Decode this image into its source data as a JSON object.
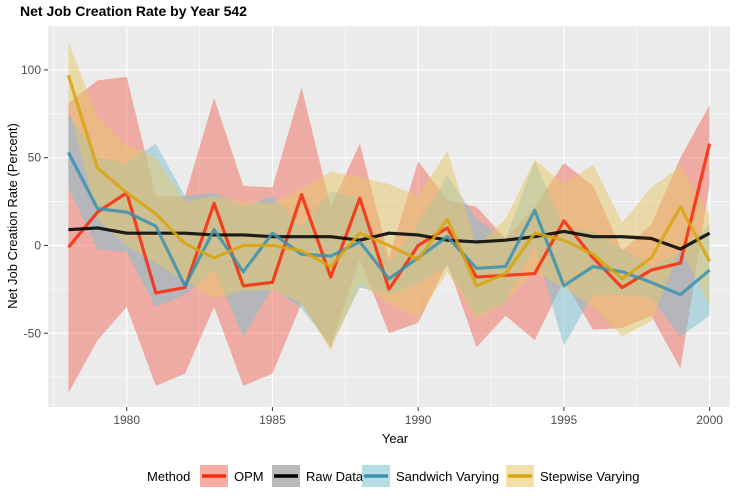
{
  "chart_data": {
    "type": "line",
    "title": "Net Job Creation Rate by Year 542",
    "xlabel": "Year",
    "ylabel": "Net Job Creation Rate (Percent)",
    "xlim": [
      1977.3,
      2000.7
    ],
    "ylim": [
      -92,
      125
    ],
    "x_ticks": [
      1980,
      1985,
      1990,
      1995,
      2000
    ],
    "y_ticks": [
      -50,
      0,
      50,
      100
    ],
    "x_tick_labels": [
      "1980",
      "1985",
      "1990",
      "1995",
      "2000"
    ],
    "y_tick_labels": [
      "-50",
      "0",
      "50",
      "100"
    ],
    "grid": true,
    "legend_position": "bottom",
    "legend_title": "Method",
    "x": [
      1978,
      1979,
      1980,
      1981,
      1982,
      1983,
      1984,
      1985,
      1986,
      1987,
      1988,
      1989,
      1990,
      1991,
      1992,
      1993,
      1994,
      1995,
      1996,
      1997,
      1998,
      1999,
      2000
    ],
    "series": [
      {
        "name": "OPM",
        "color": "#F8290A",
        "band_color": "#F26B5B",
        "values": [
          -1,
          19,
          30,
          -27,
          -24,
          24,
          -23,
          -21,
          29,
          -18,
          27,
          -25,
          0,
          10,
          -18,
          -17,
          -16,
          14,
          -7,
          -24,
          -14,
          -10,
          58
        ],
        "lower": [
          -84,
          -54,
          -35,
          -80,
          -73,
          -35,
          -80,
          -73,
          -33,
          -58,
          -8,
          -50,
          -44,
          -10,
          -58,
          -40,
          -54,
          -20,
          -48,
          -47,
          -40,
          -70,
          35
        ],
        "upper": [
          81,
          94,
          96,
          28,
          28,
          84,
          34,
          33,
          90,
          22,
          58,
          -7,
          48,
          26,
          22,
          4,
          22,
          47,
          34,
          -3,
          12,
          50,
          80
        ]
      },
      {
        "name": "Raw Data",
        "color": "#000000",
        "band_color": "#7F7F7F",
        "values": [
          9,
          10,
          7,
          7,
          7,
          6,
          6,
          5,
          5,
          5,
          3,
          7,
          6,
          3,
          2,
          3,
          5,
          8,
          5,
          5,
          4,
          -2,
          7
        ],
        "lower": [
          8,
          9,
          6,
          6,
          6,
          5,
          5,
          4,
          4,
          4,
          2,
          6,
          5,
          2,
          1,
          2,
          4,
          7,
          4,
          4,
          3,
          -3,
          6
        ],
        "upper": [
          10,
          11,
          8,
          8,
          8,
          7,
          7,
          6,
          6,
          6,
          4,
          8,
          7,
          4,
          3,
          4,
          6,
          9,
          6,
          6,
          5,
          -1,
          8
        ]
      },
      {
        "name": "Sandwich Varying",
        "color": "#3A92B0",
        "band_color": "#7CC1D1",
        "values": [
          53,
          21,
          19,
          11,
          -23,
          9,
          -15,
          7,
          -5,
          -6,
          2,
          -19,
          -7,
          5,
          -13,
          -12,
          20,
          -23,
          -12,
          -15,
          -21,
          -28,
          -14
        ],
        "lower": [
          33,
          -2,
          -4,
          -35,
          -28,
          -14,
          -52,
          -24,
          -36,
          -57,
          -24,
          -28,
          -22,
          -12,
          -40,
          -32,
          0,
          -57,
          -28,
          -28,
          -30,
          -52,
          -40
        ],
        "upper": [
          75,
          50,
          47,
          58,
          28,
          30,
          22,
          28,
          11,
          31,
          27,
          -10,
          12,
          40,
          15,
          4,
          48,
          10,
          8,
          -2,
          -12,
          -4,
          12
        ]
      },
      {
        "name": "Stepwise Varying",
        "color": "#D8A40E",
        "band_color": "#E8C766",
        "values": [
          97,
          44,
          30,
          18,
          1,
          -7,
          0,
          0,
          -3,
          -12,
          7,
          0,
          -8,
          15,
          -23,
          -16,
          7,
          3,
          -5,
          -19,
          -7,
          22,
          -9
        ],
        "lower": [
          80,
          15,
          0,
          -10,
          -20,
          -30,
          -26,
          -25,
          -33,
          -60,
          -22,
          -33,
          -41,
          -15,
          -42,
          -32,
          -15,
          -24,
          -35,
          -52,
          -43,
          -2,
          -34
        ],
        "upper": [
          116,
          73,
          57,
          50,
          25,
          28,
          25,
          24,
          32,
          42,
          39,
          35,
          28,
          54,
          0,
          15,
          49,
          35,
          46,
          13,
          33,
          45,
          18
        ]
      }
    ]
  }
}
